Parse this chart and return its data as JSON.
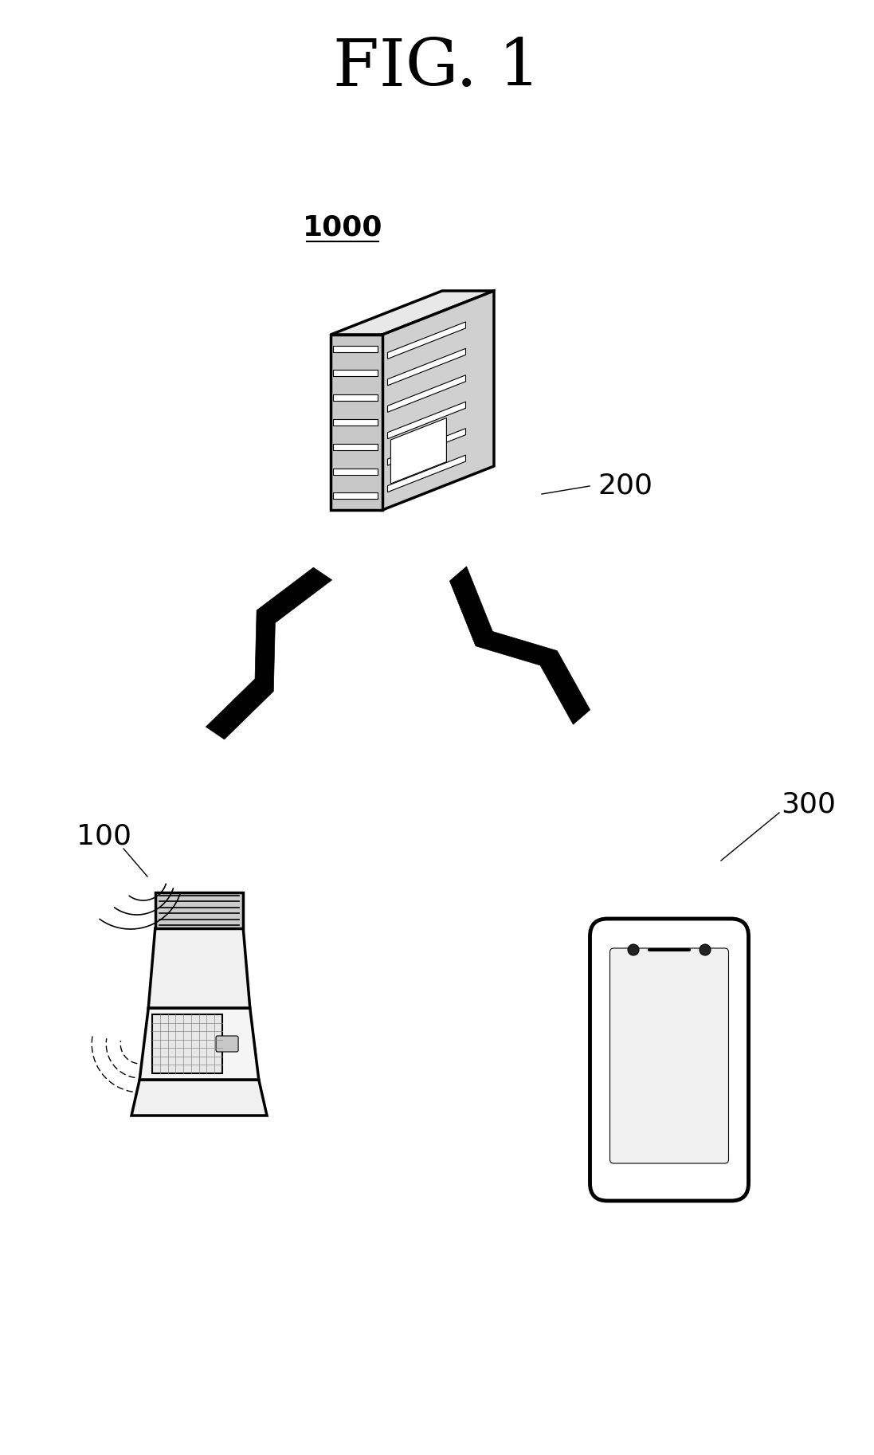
{
  "title": "FIG. 1",
  "title_fontsize": 60,
  "title_font": "serif",
  "bg_color": "#ffffff",
  "label_1000": "1000",
  "label_200": "200",
  "label_100": "100",
  "label_300": "300",
  "label_fontsize": 26,
  "fig_width": 10.97,
  "fig_height": 18.26,
  "fig_dpi": 100
}
